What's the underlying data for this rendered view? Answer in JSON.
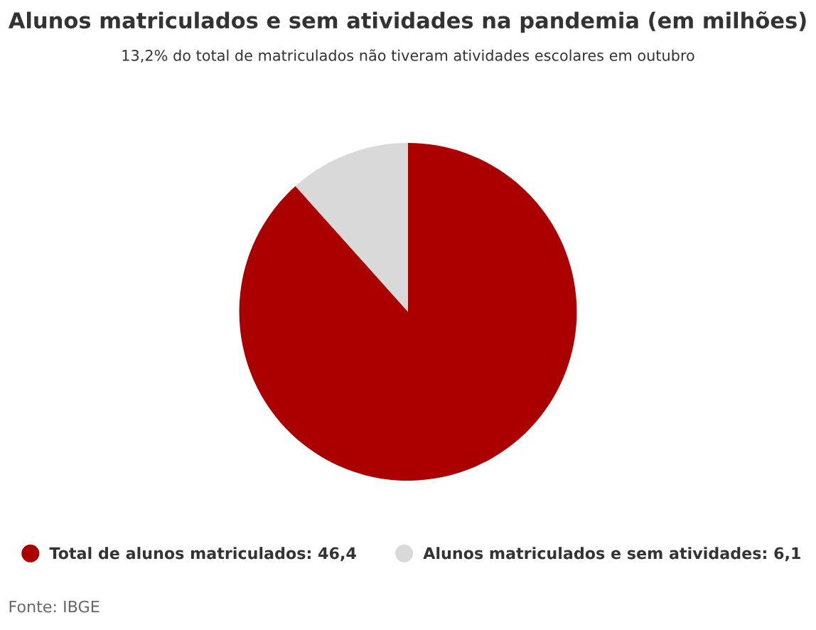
{
  "chart_data": {
    "type": "pie",
    "title": "Alunos matriculados e sem atividades na pandemia (em milhões)",
    "subtitle": "13,2% do total de matriculados não tiveram atividades escolares em outubro",
    "categories": [
      "Total de alunos matriculados",
      "Alunos matriculados e sem atividades"
    ],
    "values": [
      46.4,
      6.1
    ],
    "value_labels": [
      "46,4",
      "6,1"
    ],
    "colors": [
      "#aa0000",
      "#d9d9d9"
    ],
    "legend": "bottom",
    "annotations": [
      "Fonte: IBGE"
    ]
  }
}
